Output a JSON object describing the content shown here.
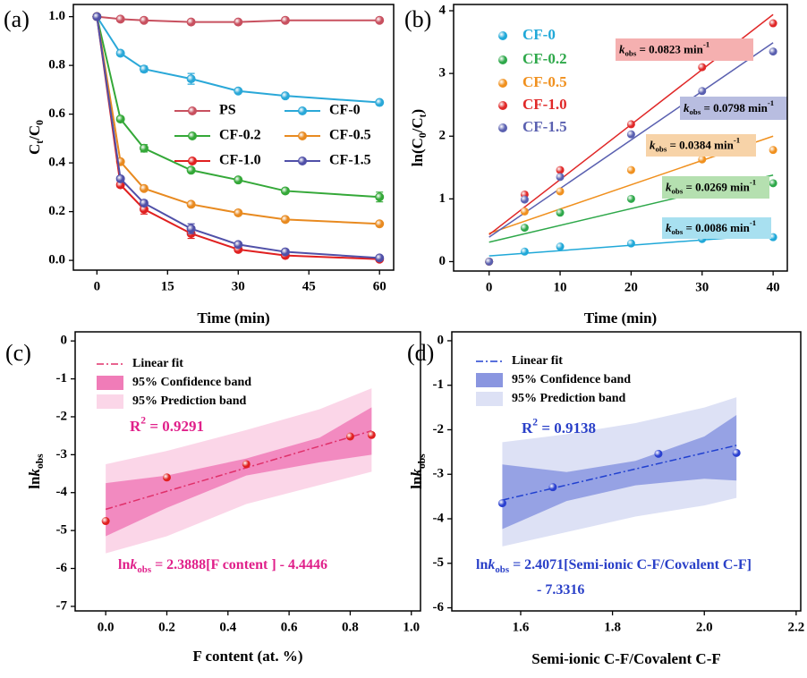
{
  "chart_data": [
    {
      "type": "line",
      "panel_label": "(a)",
      "xlabel": "Time (min)",
      "ylabel": [
        {
          "text": "C"
        },
        {
          "text": "t",
          "style": "sub"
        },
        {
          "text": "/C"
        },
        {
          "text": "0",
          "style": "sub"
        }
      ],
      "x": [
        0,
        5,
        10,
        20,
        30,
        40,
        60
      ],
      "xlim": [
        -5,
        63
      ],
      "xticks": [
        0,
        15,
        30,
        45,
        60
      ],
      "ylim": [
        -0.04,
        1.05
      ],
      "yticks": [
        {
          "value": 0,
          "label": "0.0"
        },
        0.2,
        0.4,
        0.6,
        0.8,
        {
          "value": 1,
          "label": "1.0"
        }
      ],
      "series": [
        {
          "name": "PS",
          "color": "#c8505f",
          "values": [
            1.0,
            0.99,
            0.985,
            0.978,
            0.978,
            0.985,
            0.985
          ],
          "errors": [
            0.005,
            0.005,
            0.005,
            0.008,
            0.005,
            0.005,
            0.005
          ]
        },
        {
          "name": "CF-0",
          "color": "#2aa8d8",
          "values": [
            1.0,
            0.85,
            0.785,
            0.745,
            0.695,
            0.675,
            0.648
          ],
          "errors": [
            0.005,
            0.008,
            0.012,
            0.022,
            0.006,
            0.006,
            0.006
          ]
        },
        {
          "name": "CF-0.2",
          "color": "#34a838",
          "values": [
            1.0,
            0.58,
            0.46,
            0.37,
            0.33,
            0.285,
            0.26
          ],
          "errors": [
            0.005,
            0.008,
            0.015,
            0.008,
            0.008,
            0.008,
            0.02
          ]
        },
        {
          "name": "CF-0.5",
          "color": "#e88a20",
          "values": [
            1.0,
            0.405,
            0.295,
            0.23,
            0.195,
            0.168,
            0.15
          ],
          "errors": [
            0.005,
            0.008,
            0.008,
            0.008,
            0.008,
            0.006,
            0.006
          ]
        },
        {
          "name": "CF-1.0",
          "color": "#e02020",
          "values": [
            1.0,
            0.31,
            0.21,
            0.11,
            0.045,
            0.02,
            0.005
          ],
          "errors": [
            0.005,
            0.01,
            0.02,
            0.02,
            0.01,
            0.006,
            0.005
          ]
        },
        {
          "name": "CF-1.5",
          "color": "#5050a8",
          "values": [
            1.0,
            0.335,
            0.235,
            0.13,
            0.065,
            0.035,
            0.01
          ],
          "errors": [
            0.005,
            0.008,
            0.01,
            0.02,
            0.008,
            0.006,
            0.005
          ]
        }
      ]
    },
    {
      "type": "scatter",
      "panel_label": "(b)",
      "xlabel": "Time (min)",
      "ylabel": [
        {
          "text": "ln(C"
        },
        {
          "text": "0",
          "style": "sub"
        },
        {
          "text": "/C"
        },
        {
          "text": "t",
          "style": "sub"
        },
        {
          "text": ")"
        }
      ],
      "x": [
        0,
        5,
        10,
        20,
        30,
        40
      ],
      "xlim": [
        -5,
        42
      ],
      "xticks": [
        0,
        10,
        20,
        30,
        40
      ],
      "ylim": [
        -0.15,
        4.1
      ],
      "yticks": [
        0,
        1,
        2,
        3,
        4
      ],
      "fit_x": [
        0,
        40
      ],
      "series": [
        {
          "name": "CF-0",
          "color": "#1fa8d8",
          "values": [
            0,
            0.16,
            0.24,
            0.29,
            0.36,
            0.39
          ],
          "fit": [
            0.09,
            0.43
          ]
        },
        {
          "name": "CF-0.2",
          "color": "#2ea84a",
          "values": [
            0,
            0.54,
            0.78,
            1.0,
            1.12,
            1.25
          ],
          "fit": [
            0.31,
            1.38
          ]
        },
        {
          "name": "CF-0.5",
          "color": "#f0901e",
          "values": [
            0,
            0.8,
            1.12,
            1.46,
            1.63,
            1.78
          ],
          "fit": [
            0.45,
            2.0
          ]
        },
        {
          "name": "CF-1.0",
          "color": "#e02828",
          "values": [
            0,
            1.07,
            1.46,
            2.19,
            3.1,
            3.8
          ],
          "fit": [
            0.43,
            3.94
          ]
        },
        {
          "name": "CF-1.5",
          "color": "#5a60b0",
          "values": [
            0,
            0.99,
            1.35,
            2.03,
            2.72,
            3.35
          ],
          "fit": [
            0.39,
            3.49
          ]
        }
      ],
      "annotations": [
        {
          "background": "#f5b0b0",
          "text": [
            {
              "text": "k",
              "style": "italic"
            },
            {
              "text": "obs",
              "style": "sub"
            },
            {
              "text": " = 0.0823 min"
            },
            {
              "text": "-1",
              "style": "sup"
            }
          ]
        },
        {
          "background": "#b8bde0",
          "text": [
            {
              "text": "k",
              "style": "italic"
            },
            {
              "text": "obs",
              "style": "sub"
            },
            {
              "text": " = 0.0798 min"
            },
            {
              "text": "-1",
              "style": "sup"
            }
          ]
        },
        {
          "background": "#f7d3a8",
          "text": [
            {
              "text": "k",
              "style": "italic"
            },
            {
              "text": "obs",
              "style": "sub"
            },
            {
              "text": " = 0.0384 min"
            },
            {
              "text": "-1",
              "style": "sup"
            }
          ]
        },
        {
          "background": "#b5e0b0",
          "text": [
            {
              "text": "k",
              "style": "italic"
            },
            {
              "text": "obs",
              "style": "sub"
            },
            {
              "text": " = 0.0269 min"
            },
            {
              "text": "-1",
              "style": "sup"
            }
          ]
        },
        {
          "background": "#a8e0f0",
          "text": [
            {
              "text": "k",
              "style": "italic"
            },
            {
              "text": "obs",
              "style": "sub"
            },
            {
              "text": " = 0.0086 min"
            },
            {
              "text": "-1",
              "style": "sup"
            }
          ]
        }
      ]
    },
    {
      "type": "scatter",
      "panel_label": "(c)",
      "xlabel": "F content (at. %)",
      "ylabel": [
        {
          "text": "ln"
        },
        {
          "text": "k",
          "style": "italic"
        },
        {
          "text": "obs",
          "style": "sub"
        }
      ],
      "x": [
        0,
        0.2,
        0.46,
        0.8,
        0.87
      ],
      "values": [
        -4.75,
        -3.6,
        -3.25,
        -2.52,
        -2.48
      ],
      "color": "#e02020",
      "xlim": [
        -0.1,
        1.03
      ],
      "xticks": [
        {
          "value": 0,
          "label": "0.0"
        },
        0.2,
        0.4,
        0.6,
        0.8,
        {
          "value": 1,
          "label": "1.0"
        }
      ],
      "ylim": [
        -7.12,
        0.24
      ],
      "yticks": [
        0,
        -1,
        -2,
        -3,
        -4,
        -5,
        -6,
        -7
      ],
      "fit": {
        "name": "Linear fit",
        "color": "#e0306a",
        "x": [
          0,
          0.87
        ],
        "values": [
          -4.44,
          -2.37
        ]
      },
      "confidence": {
        "name": "95% Confidence band",
        "color": "#f07cb8",
        "x": [
          0,
          0.2,
          0.46,
          0.7,
          0.87
        ],
        "upper": [
          -3.75,
          -3.55,
          -3.1,
          -2.55,
          -1.75
        ],
        "lower": [
          -5.15,
          -4.4,
          -3.55,
          -3.2,
          -3.0
        ]
      },
      "prediction": {
        "name": "95% Prediction band",
        "color": "#fbd6e8",
        "x": [
          0,
          0.2,
          0.46,
          0.7,
          0.87
        ],
        "upper": [
          -3.25,
          -2.9,
          -2.35,
          -1.8,
          -1.25
        ],
        "lower": [
          -5.6,
          -5.15,
          -4.3,
          -3.8,
          -3.45
        ]
      },
      "annotation_color": "#e0208a",
      "r2": [
        {
          "text": "R"
        },
        {
          "text": "2",
          "style": "sup"
        },
        {
          "text": " = 0.9291"
        }
      ],
      "equation": [
        [
          {
            "text": "ln"
          },
          {
            "text": "k",
            "style": "italic"
          },
          {
            "text": "obs",
            "style": "sub"
          },
          {
            "text": " = 2.3888[F content ] - 4.4446"
          }
        ]
      ]
    },
    {
      "type": "scatter",
      "panel_label": "(d)",
      "xlabel": "Semi-ionic C-F/Covalent C-F",
      "ylabel": [
        {
          "text": "ln"
        },
        {
          "text": "k",
          "style": "italic"
        },
        {
          "text": "obs",
          "style": "sub"
        }
      ],
      "x": [
        1.56,
        1.67,
        1.9,
        2.07
      ],
      "values": [
        -3.65,
        -3.29,
        -2.54,
        -2.52
      ],
      "color": "#2a40d0",
      "xlim": [
        1.45,
        2.21
      ],
      "xticks": [
        1.6,
        1.8,
        {
          "value": 2,
          "label": "2.0"
        },
        2.2
      ],
      "ylim": [
        -6.07,
        0.2
      ],
      "yticks": [
        0,
        -1,
        -2,
        -3,
        -4,
        -5,
        -6
      ],
      "fit": {
        "name": "Linear fit",
        "color": "#2040d0",
        "x": [
          1.56,
          2.07
        ],
        "values": [
          -3.58,
          -2.35
        ]
      },
      "confidence": {
        "name": "95% Confidence band",
        "color": "#8a96e0",
        "x": [
          1.56,
          1.7,
          1.85,
          2.0,
          2.07
        ],
        "upper": [
          -2.78,
          -2.95,
          -2.7,
          -2.15,
          -1.67
        ],
        "lower": [
          -4.23,
          -3.6,
          -3.25,
          -3.1,
          -3.14
        ]
      },
      "prediction": {
        "name": "95% Prediction band",
        "color": "#dde1f5",
        "x": [
          1.56,
          1.7,
          1.85,
          2.0,
          2.07
        ],
        "upper": [
          -2.28,
          -2.1,
          -1.85,
          -1.5,
          -1.27
        ],
        "lower": [
          -4.62,
          -4.3,
          -3.95,
          -3.7,
          -3.53
        ]
      },
      "annotation_color": "#2a40c8",
      "r2": [
        {
          "text": "R"
        },
        {
          "text": "2",
          "style": "sup"
        },
        {
          "text": " = 0.9138"
        }
      ],
      "equation": [
        [
          {
            "text": "ln"
          },
          {
            "text": "k",
            "style": "italic"
          },
          {
            "text": "obs",
            "style": "sub"
          },
          {
            "text": " = 2.4071[Semi-ionic C-F/Covalent C-F]"
          }
        ],
        [
          {
            "text": "- 7.3316"
          }
        ]
      ]
    }
  ]
}
